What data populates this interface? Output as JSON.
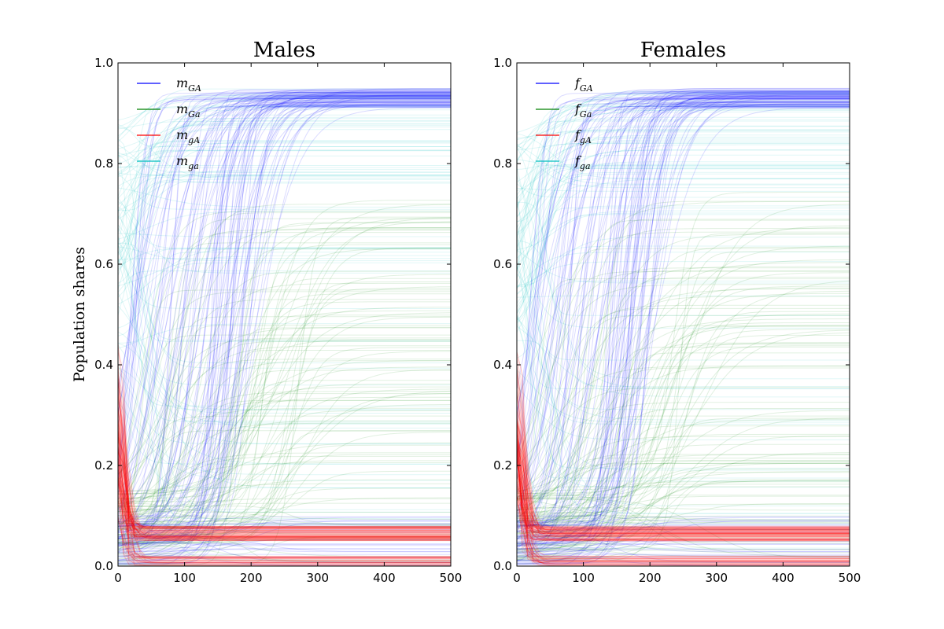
{
  "figure": {
    "ylabel": "Population shares"
  },
  "chart_data": [
    {
      "type": "line",
      "title": "Males",
      "xlabel": "",
      "ylabel": "Population shares",
      "xlim": [
        0,
        500
      ],
      "ylim": [
        0,
        1.0
      ],
      "xticks": [
        "0",
        "100",
        "200",
        "300",
        "400",
        "500"
      ],
      "yticks": [
        "0.0",
        "0.2",
        "0.4",
        "0.6",
        "0.8",
        "1.0"
      ],
      "grid": false,
      "legend_position": "top-left",
      "series": [
        {
          "name": "m_GA",
          "base": "m",
          "sub": "GA",
          "color": "#0000ff",
          "approx_steady_state_range": [
            0.91,
            0.95
          ]
        },
        {
          "name": "m_Ga",
          "base": "m",
          "sub": "Ga",
          "color": "#008000",
          "approx_steady_state_range": [
            0.0,
            0.75
          ]
        },
        {
          "name": "m_gA",
          "base": "m",
          "sub": "gA",
          "color": "#ff0000",
          "approx_steady_state_range": [
            0.05,
            0.08
          ]
        },
        {
          "name": "m_ga",
          "base": "m",
          "sub": "ga",
          "color": "#00bfbf",
          "approx_steady_state_range": [
            0.0,
            0.95
          ]
        }
      ]
    },
    {
      "type": "line",
      "title": "Females",
      "xlabel": "",
      "ylabel": "",
      "xlim": [
        0,
        500
      ],
      "ylim": [
        0,
        1.0
      ],
      "xticks": [
        "0",
        "100",
        "200",
        "300",
        "400",
        "500"
      ],
      "yticks": [
        "0.0",
        "0.2",
        "0.4",
        "0.6",
        "0.8",
        "1.0"
      ],
      "grid": false,
      "legend_position": "top-left",
      "series": [
        {
          "name": "f_GA",
          "base": "f",
          "sub": "GA",
          "color": "#0000ff",
          "approx_steady_state_range": [
            0.91,
            0.95
          ]
        },
        {
          "name": "f_Ga",
          "base": "f",
          "sub": "Ga",
          "color": "#008000",
          "approx_steady_state_range": [
            0.0,
            0.75
          ]
        },
        {
          "name": "f_gA",
          "base": "f",
          "sub": "gA",
          "color": "#ff0000",
          "approx_steady_state_range": [
            0.05,
            0.08
          ]
        },
        {
          "name": "f_ga",
          "base": "f",
          "sub": "ga",
          "color": "#00bfbf",
          "approx_steady_state_range": [
            0.0,
            0.95
          ]
        }
      ]
    }
  ]
}
